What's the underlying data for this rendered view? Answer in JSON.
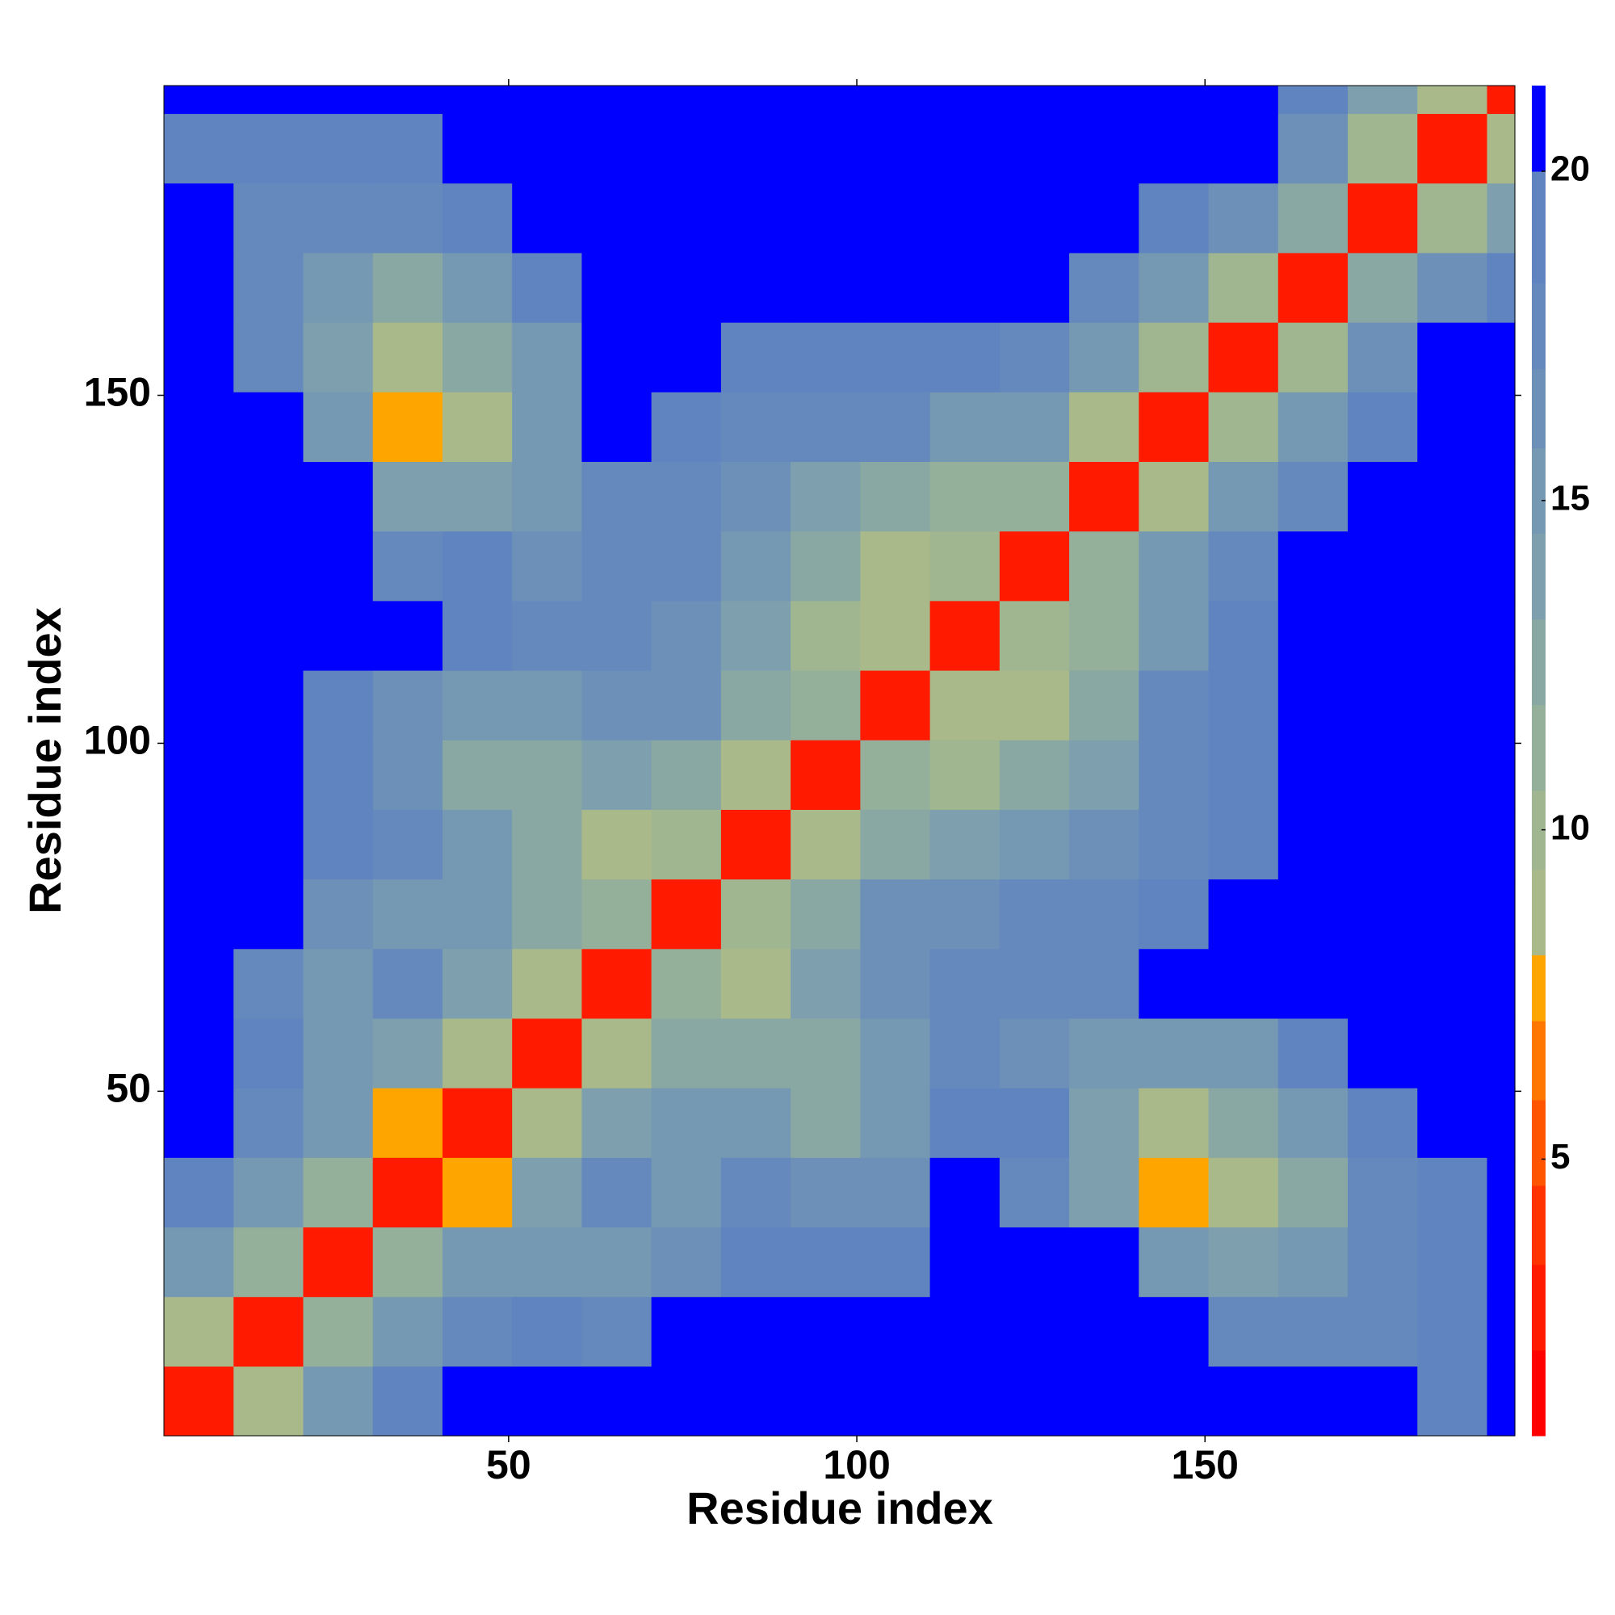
{
  "chart_data": {
    "type": "heatmap",
    "xlabel": "Residue index",
    "ylabel": "Residue index",
    "x_bins": [
      0.5,
      10.5,
      20.5,
      30.5,
      40.5,
      50.5,
      60.5,
      70.5,
      80.5,
      90.5,
      100.5,
      110.5,
      120.5,
      130.5,
      140.5,
      150.5,
      160.5,
      170.5,
      180.5,
      190.5,
      194.5
    ],
    "y_bins": [
      0.5,
      10.5,
      20.5,
      30.5,
      40.5,
      50.5,
      60.5,
      70.5,
      80.5,
      90.5,
      100.5,
      110.5,
      120.5,
      130.5,
      140.5,
      150.5,
      160.5,
      170.5,
      180.5,
      190.5,
      194.5
    ],
    "xlim": [
      0.5,
      194.5
    ],
    "ylim": [
      0.5,
      194.5
    ],
    "xticks": [
      50,
      100,
      150
    ],
    "yticks": [
      50,
      100,
      150
    ],
    "z": [
      [
        3,
        9,
        15,
        19,
        21,
        21,
        21,
        21,
        21,
        21,
        21,
        21,
        21,
        21,
        21,
        21,
        21,
        21,
        19,
        21
      ],
      [
        9,
        3,
        11,
        15,
        18,
        19,
        17,
        21,
        21,
        21,
        21,
        21,
        21,
        21,
        21,
        18,
        17,
        18,
        19,
        21
      ],
      [
        15,
        11,
        3,
        11,
        15,
        15,
        15,
        16,
        19,
        19,
        19,
        21,
        21,
        21,
        15,
        14,
        15,
        17,
        19,
        21
      ],
      [
        19,
        15,
        11,
        3,
        8,
        14,
        17,
        15,
        17,
        16,
        16,
        21,
        18,
        14,
        8,
        9,
        12,
        17,
        19,
        21
      ],
      [
        21,
        18,
        15,
        8,
        3,
        9,
        14,
        15,
        15,
        13,
        15,
        19,
        19,
        14,
        9,
        12,
        15,
        19,
        21,
        21
      ],
      [
        21,
        19,
        15,
        14,
        9,
        3,
        9,
        13,
        12,
        12,
        15,
        17,
        16,
        15,
        15,
        15,
        19,
        21,
        21,
        21
      ],
      [
        21,
        17,
        15,
        17,
        14,
        9,
        3,
        11,
        9,
        14,
        16,
        18,
        17,
        17,
        20,
        21,
        21,
        21,
        21,
        21
      ],
      [
        21,
        21,
        16,
        15,
        15,
        13,
        11,
        3,
        10,
        13,
        16,
        16,
        17,
        18,
        19,
        21,
        21,
        21,
        21,
        21
      ],
      [
        21,
        21,
        19,
        17,
        15,
        12,
        9,
        10,
        3,
        9,
        13,
        14,
        15,
        16,
        18,
        19,
        21,
        21,
        21,
        21
      ],
      [
        21,
        21,
        19,
        16,
        13,
        12,
        14,
        13,
        9,
        3,
        11,
        10,
        12,
        14,
        18,
        19,
        21,
        21,
        21,
        21
      ],
      [
        21,
        21,
        19,
        16,
        15,
        15,
        16,
        16,
        13,
        11,
        3,
        9,
        9,
        13,
        17,
        19,
        21,
        21,
        21,
        21
      ],
      [
        21,
        21,
        21,
        21,
        19,
        17,
        18,
        16,
        14,
        10,
        9,
        3,
        10,
        11,
        15,
        19,
        21,
        21,
        21,
        21
      ],
      [
        21,
        21,
        21,
        18,
        19,
        16,
        17,
        17,
        15,
        12,
        9,
        10,
        3,
        11,
        15,
        18,
        21,
        21,
        21,
        21
      ],
      [
        21,
        21,
        21,
        14,
        14,
        15,
        17,
        18,
        16,
        14,
        13,
        11,
        11,
        3,
        9,
        15,
        18,
        21,
        21,
        21
      ],
      [
        21,
        21,
        15,
        8,
        9,
        15,
        20,
        19,
        18,
        18,
        17,
        15,
        15,
        9,
        3,
        10,
        15,
        19,
        21,
        21
      ],
      [
        21,
        18,
        14,
        9,
        12,
        15,
        21,
        21,
        19,
        19,
        19,
        19,
        18,
        15,
        10,
        3,
        10,
        16,
        20,
        21
      ],
      [
        21,
        17,
        15,
        12,
        15,
        19,
        21,
        21,
        21,
        21,
        21,
        21,
        21,
        18,
        15,
        10,
        3,
        13,
        16,
        19
      ],
      [
        21,
        18,
        17,
        17,
        19,
        21,
        21,
        21,
        21,
        21,
        21,
        21,
        21,
        21,
        19,
        16,
        13,
        3,
        10,
        14
      ],
      [
        19,
        19,
        19,
        19,
        21,
        21,
        21,
        21,
        21,
        21,
        21,
        21,
        21,
        21,
        21,
        20,
        16,
        10,
        3,
        9
      ],
      [
        21,
        21,
        21,
        21,
        21,
        21,
        21,
        21,
        21,
        21,
        21,
        21,
        21,
        21,
        21,
        21,
        19,
        14,
        9,
        3
      ]
    ],
    "colorbar": {
      "lim": [
        0.8,
        21.3
      ],
      "ticks": [
        5,
        10,
        15,
        20
      ],
      "bounds": [
        0.8,
        2.1,
        3.4,
        4.6,
        5.9,
        7.1,
        8.1,
        9.4,
        10.6,
        11.9,
        13.2,
        14.5,
        15.8,
        17,
        18.3,
        20,
        21.3
      ],
      "colors": [
        "#ff0000",
        "#ff1a00",
        "#ff3300",
        "#ff5500",
        "#ff7700",
        "#ffa500",
        "#a9b98a",
        "#9fb690",
        "#94b09a",
        "#89a8a4",
        "#7ea0ae",
        "#7598b3",
        "#6c90b8",
        "#6589bd",
        "#5f84c0",
        "#0000ff"
      ]
    }
  }
}
